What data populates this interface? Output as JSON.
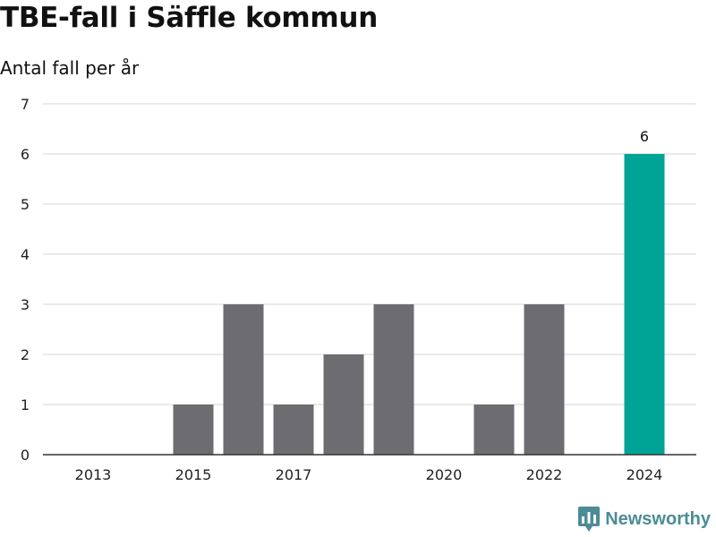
{
  "chart_data": {
    "type": "bar",
    "title": "TBE-fall i Säffle kommun",
    "subtitle": "Antal fall per år",
    "categories": [
      "2013",
      "2014",
      "2015",
      "2016",
      "2017",
      "2018",
      "2019",
      "2020",
      "2021",
      "2022",
      "2023",
      "2024"
    ],
    "values": [
      0,
      0,
      1,
      3,
      1,
      2,
      3,
      0,
      1,
      3,
      0,
      6
    ],
    "x_tick_labels": [
      "2013",
      "2015",
      "2017",
      "2020",
      "2022",
      "2024"
    ],
    "y_ticks": [
      0,
      1,
      2,
      3,
      4,
      5,
      6,
      7
    ],
    "ylim": [
      0,
      7
    ],
    "grid": true,
    "highlight": {
      "category": "2024",
      "label": "6"
    },
    "colors": {
      "bar": "#6d6c71",
      "highlight": "#00a497",
      "grid": "#dddddd",
      "axis": "#333333"
    }
  },
  "brand": {
    "name": "Newsworthy",
    "icon": "newsworthy-logo-icon",
    "color": "#4b8c96"
  }
}
